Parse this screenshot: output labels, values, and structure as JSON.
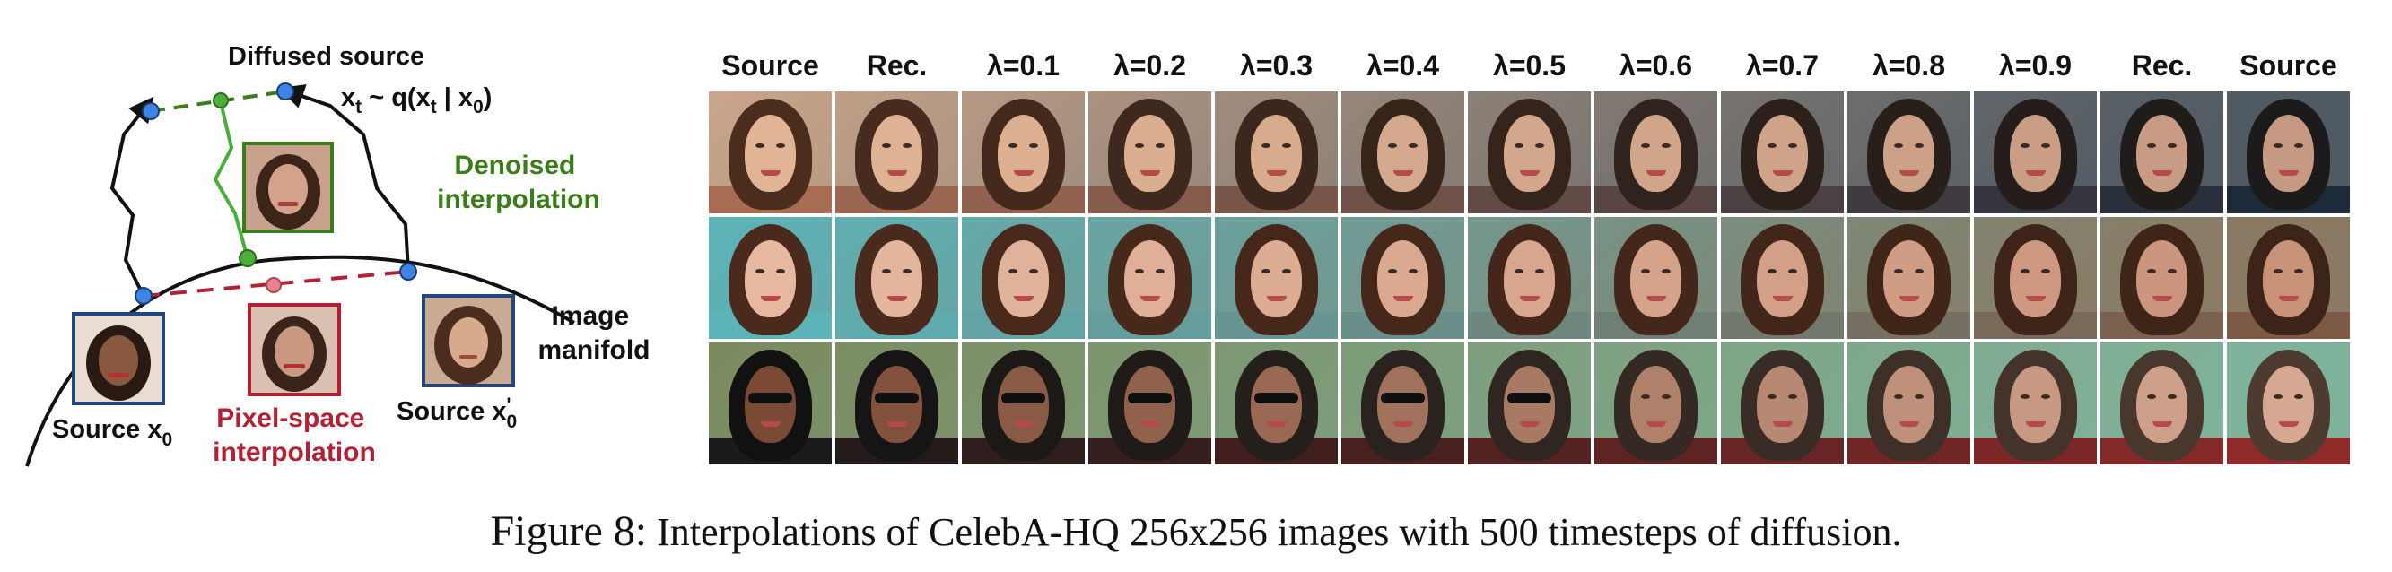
{
  "diagram": {
    "diffused_source_label": "Diffused source",
    "q_equation": {
      "x": "x",
      "t1": "t",
      "mid": " ~ q(x",
      "t2": "t",
      "bar": " | x",
      "zero": "0",
      "end": ")"
    },
    "denoised_label_line1": "Denoised",
    "denoised_label_line2": "interpolation",
    "image_manifold_line1": "Image",
    "image_manifold_line2": "manifold",
    "source_x0": {
      "text": "Source x",
      "sub": "0"
    },
    "source_x0prime": {
      "text": "Source x",
      "sup": "'",
      "sub": "0"
    },
    "pixel_label_line1": "Pixel-space",
    "pixel_label_line2": "interpolation",
    "colors": {
      "denoised": "#3a7d1a",
      "pixel": "#b22234",
      "node_blue": "#3d84e6",
      "node_green": "#4cae3a",
      "node_pink": "#e8838e",
      "frame_blue": "#23467f",
      "frame_green": "#3a7d1a",
      "frame_red": "#b22234"
    }
  },
  "grid": {
    "columns": [
      "Source",
      "Rec.",
      "λ=0.1",
      "λ=0.2",
      "λ=0.3",
      "λ=0.4",
      "λ=0.5",
      "λ=0.6",
      "λ=0.7",
      "λ=0.8",
      "λ=0.9",
      "Rec.",
      "Source"
    ],
    "rows": [
      {
        "name": "row-1",
        "bg_start": "#c9a58a",
        "bg_end": "#4f5a63",
        "hair_start": "#4b2d1e",
        "hair_end": "#1c1a1a",
        "skin_start": "#e0b494",
        "skin_end": "#c69a82",
        "shirt_start": "#a76c52",
        "shirt_end": "#1d2a3a"
      },
      {
        "name": "row-2",
        "bg_start": "#5cb3b8",
        "bg_end": "#8a7a63",
        "hair_start": "#4a2a1c",
        "hair_end": "#3d2418",
        "skin_start": "#e6b8a0",
        "skin_end": "#c9937a",
        "shirt_start": "#5cb3b8",
        "shirt_end": "#7d5a46"
      },
      {
        "name": "row-3",
        "bg_start": "#7c8a5e",
        "bg_end": "#7fb29a",
        "hair_start": "#111111",
        "hair_end": "#4d3a30",
        "skin_start": "#7a4a34",
        "skin_end": "#d6a891",
        "shirt_start": "#1a1a1a",
        "shirt_end": "#8e2a2a",
        "glasses_until": 6
      }
    ]
  },
  "caption": {
    "prefix": "Figure 8:",
    "text": " Interpolations of CelebA-HQ 256x256 images with 500 timesteps of diffusion."
  }
}
